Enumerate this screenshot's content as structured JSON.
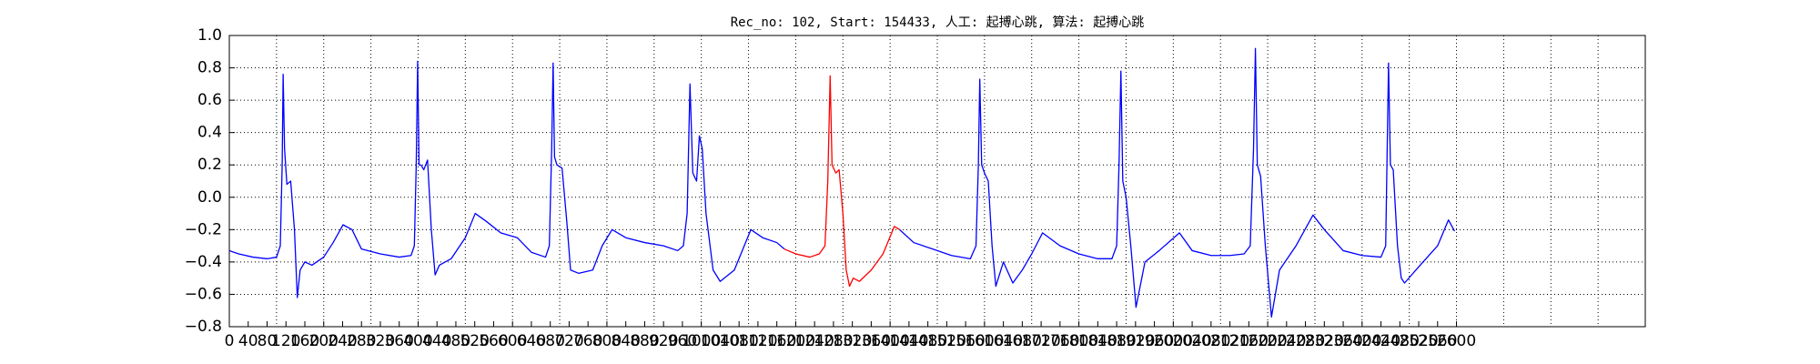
{
  "chart_data": {
    "type": "line",
    "title": "Rec_no: 102, Start: 154433, 人工: 起搏心跳, 算法: 起搏心跳",
    "xlim": [
      0,
      3000
    ],
    "xticks": [
      0,
      40,
      80,
      120,
      160,
      200,
      240,
      280,
      320,
      360,
      400,
      440,
      480,
      520,
      560,
      600,
      640,
      680,
      720,
      760,
      800,
      840,
      880,
      920,
      960,
      1000,
      1040,
      1080,
      1120,
      1160,
      1200,
      1240,
      1280,
      1320,
      1360,
      1400,
      1440,
      1480,
      1520,
      1560,
      1600,
      1640,
      1680,
      1720,
      1760,
      1800,
      1840,
      1880,
      1920,
      1960,
      2000,
      2040,
      2080,
      2120,
      2160,
      2200,
      2240,
      2280,
      2320,
      2360,
      2400,
      2440,
      2480,
      2520,
      2560,
      2600
    ],
    "x_gridlines": [
      0,
      100,
      200,
      300,
      400,
      500,
      600,
      700,
      800,
      900,
      1000,
      1100,
      1200,
      1300,
      1400,
      1500,
      1600,
      1700,
      1800,
      1900,
      2000,
      2100,
      2200,
      2300,
      2400,
      2500,
      2600,
      2700,
      2800,
      2900,
      3000
    ],
    "ylim": [
      -0.8,
      1.0
    ],
    "yticks": [
      {
        "value": -0.8,
        "label": "−0.8"
      },
      {
        "value": -0.6,
        "label": "−0.6"
      },
      {
        "value": -0.4,
        "label": "−0.4"
      },
      {
        "value": -0.2,
        "label": "−0.2"
      },
      {
        "value": 0,
        "label": "0.0"
      },
      0.2,
      0.4,
      0.6,
      0.8,
      {
        "value": 1,
        "label": "1.0"
      }
    ],
    "grid": true,
    "series": [
      {
        "color": "#0000ff",
        "x": [
          0,
          20,
          50,
          80,
          100,
          108,
          112,
          114,
          117,
          122,
          130,
          138,
          144,
          150,
          160,
          175,
          200,
          220,
          241,
          260,
          280,
          320,
          360,
          385,
          392,
          396,
          399,
          402,
          406,
          412,
          420,
          428,
          436,
          445,
          470,
          500,
          521,
          545,
          575,
          610,
          640,
          670,
          678,
          683,
          686,
          689,
          694,
          705,
          715,
          723,
          740,
          770,
          790,
          811,
          840,
          880,
          920,
          950,
          962,
          970,
          973,
          976,
          982,
          990,
          996,
          1002,
          1010,
          1025,
          1040,
          1070,
          1105,
          1130,
          1160,
          1176
        ],
        "values": [
          -0.33,
          -0.35,
          -0.37,
          -0.38,
          -0.37,
          -0.3,
          0.2,
          0.76,
          0.3,
          0.08,
          0.1,
          -0.2,
          -0.62,
          -0.45,
          -0.4,
          -0.42,
          -0.37,
          -0.28,
          -0.17,
          -0.2,
          -0.32,
          -0.35,
          -0.37,
          -0.36,
          -0.3,
          0.2,
          0.84,
          0.2,
          0.2,
          0.17,
          0.23,
          -0.2,
          -0.48,
          -0.42,
          -0.38,
          -0.25,
          -0.1,
          -0.15,
          -0.22,
          -0.25,
          -0.34,
          -0.37,
          -0.3,
          0.3,
          0.83,
          0.25,
          0.2,
          0.18,
          -0.15,
          -0.45,
          -0.47,
          -0.45,
          -0.3,
          -0.2,
          -0.25,
          -0.28,
          -0.3,
          -0.33,
          -0.3,
          -0.1,
          0.3,
          0.7,
          0.15,
          0.1,
          0.38,
          0.3,
          -0.1,
          -0.45,
          -0.52,
          -0.45,
          -0.2,
          -0.25,
          -0.28,
          -0.32
        ]
      },
      {
        "color": "#ff0000",
        "x": [
          1176,
          1200,
          1230,
          1250,
          1262,
          1268,
          1273,
          1277,
          1285,
          1292,
          1300,
          1307,
          1314,
          1322,
          1335,
          1360,
          1385,
          1409,
          1420
        ],
        "values": [
          -0.32,
          -0.35,
          -0.37,
          -0.35,
          -0.3,
          0.1,
          0.75,
          0.2,
          0.15,
          0.17,
          -0.1,
          -0.45,
          -0.55,
          -0.5,
          -0.52,
          -0.45,
          -0.35,
          -0.18,
          -0.2
        ]
      },
      {
        "color": "#0000ff",
        "x": [
          1420,
          1450,
          1490,
          1530,
          1570,
          1582,
          1587,
          1590,
          1594,
          1600,
          1608,
          1616,
          1624,
          1640,
          1660,
          1680,
          1700,
          1723,
          1760,
          1800,
          1840,
          1870,
          1880,
          1885,
          1889,
          1893,
          1900,
          1910,
          1921,
          1940,
          1970,
          2013,
          2040,
          2080,
          2120,
          2150,
          2163,
          2170,
          2174,
          2178,
          2185,
          2195,
          2208,
          2225,
          2260,
          2296,
          2320,
          2360,
          2400,
          2440,
          2450,
          2456,
          2460,
          2466,
          2475,
          2483,
          2490,
          2520,
          2560,
          2583,
          2596
        ],
        "values": [
          -0.2,
          -0.28,
          -0.32,
          -0.36,
          -0.38,
          -0.3,
          0.2,
          0.73,
          0.2,
          0.15,
          0.1,
          -0.3,
          -0.55,
          -0.4,
          -0.53,
          -0.45,
          -0.35,
          -0.22,
          -0.3,
          -0.35,
          -0.38,
          -0.38,
          -0.3,
          0.2,
          0.78,
          0.1,
          0.0,
          -0.3,
          -0.68,
          -0.4,
          -0.33,
          -0.22,
          -0.33,
          -0.36,
          -0.36,
          -0.35,
          -0.3,
          0.3,
          0.92,
          0.2,
          0.13,
          -0.3,
          -0.74,
          -0.45,
          -0.3,
          -0.11,
          -0.2,
          -0.33,
          -0.36,
          -0.37,
          -0.3,
          0.83,
          0.2,
          0.17,
          -0.3,
          -0.5,
          -0.53,
          -0.43,
          -0.3,
          -0.14,
          -0.21
        ]
      }
    ]
  }
}
